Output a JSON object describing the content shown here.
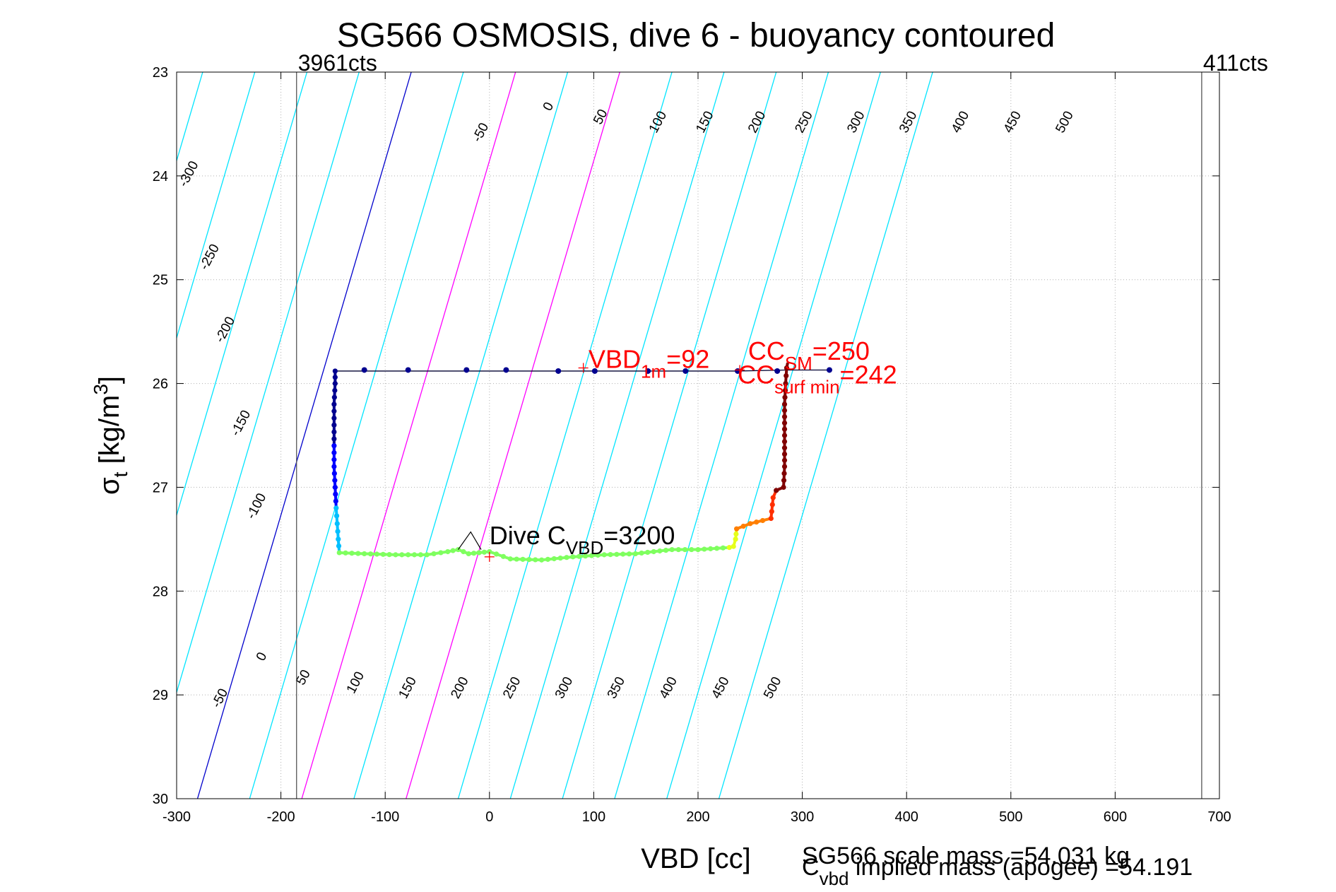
{
  "chart_data": {
    "type": "scatter",
    "title": "SG566 OSMOSIS, dive 6 - buoyancy contoured",
    "xlabel": "VBD [cc]",
    "ylabel_main": "σ",
    "ylabel_sub": "t",
    "ylabel_rest": " [kg/m",
    "ylabel_sup": "3",
    "ylabel_end": "]",
    "xlim": [
      -300,
      700
    ],
    "ylim": [
      23,
      30
    ],
    "y_reversed": true,
    "grid": true,
    "x_ticks": [
      -300,
      -200,
      -100,
      0,
      100,
      200,
      300,
      400,
      500,
      600,
      700
    ],
    "y_ticks": [
      23,
      24,
      25,
      26,
      27,
      28,
      29,
      30
    ],
    "vlines": [
      {
        "x": -185,
        "label": "3961cts"
      },
      {
        "x": 683,
        "label": "411cts"
      }
    ],
    "contours": {
      "levels": [
        -300,
        -250,
        -200,
        -150,
        -100,
        -50,
        0,
        50,
        100,
        150,
        200,
        250,
        300,
        350,
        400,
        450,
        500
      ],
      "colors": {
        "default": "#00e5ff",
        "zero": "#0000cc",
        "highlight": "#ff00ff"
      },
      "highlight_levels": [
        100,
        200
      ],
      "anchor": {
        "x_at_23": -75,
        "x_at_30": -280
      },
      "top_labels": [
        {
          "level": -300,
          "x": -285,
          "y": 24.0
        },
        {
          "level": -250,
          "x": -265,
          "y": 24.8
        },
        {
          "level": -200,
          "x": -250,
          "y": 25.5
        },
        {
          "level": -150,
          "x": -235,
          "y": 26.4
        },
        {
          "level": -100,
          "x": -220,
          "y": 27.2
        },
        {
          "level": -50,
          "x": -5,
          "y": 23.6
        },
        {
          "level": 0,
          "x": 60,
          "y": 23.35
        },
        {
          "level": 50,
          "x": 110,
          "y": 23.45
        },
        {
          "level": 100,
          "x": 165,
          "y": 23.5
        },
        {
          "level": 150,
          "x": 210,
          "y": 23.5
        },
        {
          "level": 200,
          "x": 260,
          "y": 23.5
        },
        {
          "level": 250,
          "x": 305,
          "y": 23.5
        },
        {
          "level": 300,
          "x": 355,
          "y": 23.5
        },
        {
          "level": 350,
          "x": 405,
          "y": 23.5
        },
        {
          "level": 400,
          "x": 455,
          "y": 23.5
        },
        {
          "level": 450,
          "x": 505,
          "y": 23.5
        },
        {
          "level": 500,
          "x": 555,
          "y": 23.5
        }
      ],
      "bottom_labels": [
        {
          "level": -50,
          "x": -255,
          "y": 29.05
        },
        {
          "level": 0,
          "x": -215,
          "y": 28.65
        },
        {
          "level": 50,
          "x": -175,
          "y": 28.85
        },
        {
          "level": 100,
          "x": -125,
          "y": 28.9
        },
        {
          "level": 150,
          "x": -75,
          "y": 28.95
        },
        {
          "level": 200,
          "x": -25,
          "y": 28.95
        },
        {
          "level": 250,
          "x": 25,
          "y": 28.95
        },
        {
          "level": 300,
          "x": 75,
          "y": 28.95
        },
        {
          "level": 350,
          "x": 125,
          "y": 28.95
        },
        {
          "level": 400,
          "x": 175,
          "y": 28.95
        },
        {
          "level": 450,
          "x": 225,
          "y": 28.95
        },
        {
          "level": 500,
          "x": 275,
          "y": 28.95
        }
      ]
    },
    "descent_line": [
      [
        -148,
        25.88
      ],
      [
        -120,
        25.87
      ],
      [
        -78,
        25.87
      ],
      [
        -22,
        25.87
      ],
      [
        16,
        25.87
      ],
      [
        66,
        25.88
      ],
      [
        101,
        25.88
      ],
      [
        152,
        25.88
      ],
      [
        188,
        25.88
      ],
      [
        238,
        25.88
      ],
      [
        276,
        25.88
      ],
      [
        284,
        25.87
      ],
      [
        326,
        25.87
      ]
    ],
    "descent_dots": [
      [
        -120,
        25.87
      ],
      [
        -78,
        25.87
      ],
      [
        -22,
        25.87
      ],
      [
        16,
        25.87
      ],
      [
        66,
        25.88
      ],
      [
        101,
        25.88
      ],
      [
        152,
        25.88
      ],
      [
        188,
        25.88
      ],
      [
        238,
        25.88
      ],
      [
        276,
        25.88
      ],
      [
        326,
        25.87
      ]
    ],
    "path_segments": [
      {
        "color": "#00008f",
        "points": [
          [
            -148,
            25.88
          ],
          [
            -148,
            26.0
          ],
          [
            -149,
            26.2
          ],
          [
            -149,
            26.4
          ],
          [
            -149,
            26.6
          ]
        ]
      },
      {
        "color": "#0000ff",
        "points": [
          [
            -149,
            26.6
          ],
          [
            -149,
            26.8
          ],
          [
            -148,
            27.0
          ],
          [
            -147,
            27.2
          ]
        ]
      },
      {
        "color": "#00bfff",
        "points": [
          [
            -147,
            27.2
          ],
          [
            -146,
            27.35
          ],
          [
            -145,
            27.5
          ],
          [
            -144,
            27.63
          ]
        ]
      },
      {
        "color": "#7fff5f",
        "points": [
          [
            -144,
            27.63
          ],
          [
            -120,
            27.64
          ],
          [
            -90,
            27.65
          ],
          [
            -60,
            27.65
          ],
          [
            -40,
            27.62
          ],
          [
            -30,
            27.6
          ],
          [
            -20,
            27.64
          ],
          [
            -10,
            27.63
          ],
          [
            0,
            27.62
          ],
          [
            20,
            27.69
          ],
          [
            50,
            27.7
          ],
          [
            80,
            27.67
          ],
          [
            110,
            27.65
          ],
          [
            140,
            27.64
          ],
          [
            175,
            27.6
          ],
          [
            200,
            27.6
          ],
          [
            230,
            27.58
          ]
        ]
      },
      {
        "color": "#e6ff1a",
        "points": [
          [
            230,
            27.58
          ],
          [
            234,
            27.57
          ],
          [
            236,
            27.5
          ],
          [
            237,
            27.4
          ]
        ]
      },
      {
        "color": "#ff7f00",
        "points": [
          [
            237,
            27.4
          ],
          [
            250,
            27.35
          ],
          [
            262,
            27.32
          ],
          [
            270,
            27.3
          ]
        ]
      },
      {
        "color": "#ff2f00",
        "points": [
          [
            270,
            27.3
          ],
          [
            272,
            27.1
          ],
          [
            275,
            27.03
          ]
        ]
      },
      {
        "color": "#800000",
        "points": [
          [
            275,
            27.03
          ],
          [
            282,
            27.0
          ],
          [
            283,
            26.8
          ],
          [
            283,
            26.5
          ],
          [
            283,
            26.2
          ],
          [
            284,
            26.0
          ],
          [
            285,
            25.85
          ],
          [
            286,
            25.8
          ]
        ]
      }
    ],
    "vbd_line": [
      [
        -148,
        25.88
      ],
      [
        66,
        25.88
      ],
      [
        101,
        25.88
      ],
      [
        152,
        25.88
      ],
      [
        188,
        25.88
      ],
      [
        238,
        25.88
      ],
      [
        284,
        25.87
      ],
      [
        326,
        25.87
      ]
    ],
    "dive_cvbd_peak": [
      [
        -30,
        27.6
      ],
      [
        -18,
        27.43
      ],
      [
        -8,
        27.6
      ]
    ],
    "red_markers": [
      {
        "x": 90,
        "y": 25.85
      },
      {
        "x": 0,
        "y": 27.67
      },
      {
        "x": 240,
        "y": 25.87
      }
    ],
    "annotations": [
      {
        "name": "vbd-1m",
        "base": "VBD",
        "sub": "1m",
        "value": "=92",
        "x": 95,
        "y": 25.85,
        "color": "#ff0000"
      },
      {
        "name": "cc-sm",
        "base": "CC",
        "sub": "SM",
        "value": "=250",
        "x": 248,
        "y": 25.77,
        "color": "#ff0000"
      },
      {
        "name": "cc-surf-min",
        "base": "CC",
        "sub": "surf min",
        "value": "=242",
        "x": 238,
        "y": 26.0,
        "color": "#ff0000"
      },
      {
        "name": "dive-cvbd",
        "base": "Dive C",
        "sub": "VBD",
        "value": "=3200",
        "x": 0,
        "y": 27.55,
        "color": "#000000"
      }
    ]
  },
  "footer": {
    "scale_mass": "SG566 scale mass =54.031 kg",
    "implied_base": "C",
    "implied_sub": "vbd",
    "implied_rest": " implied mass (apogee) =54.191"
  }
}
